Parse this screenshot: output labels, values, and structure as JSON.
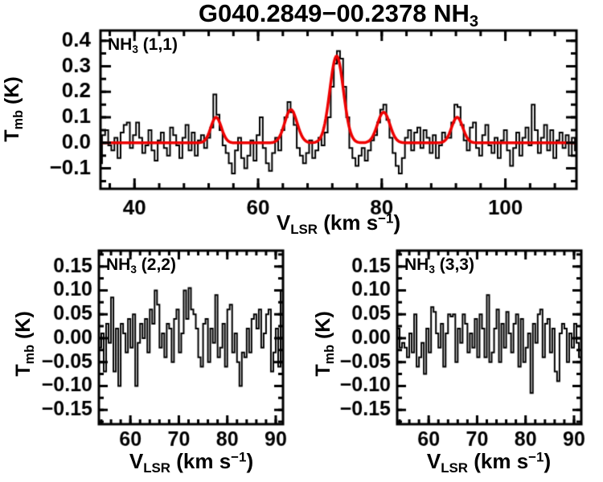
{
  "title": {
    "pre": "G040.2849−00.2378 NH",
    "sub": "3"
  },
  "colors": {
    "bg": "#ffffff",
    "line": "#000000",
    "fit": "#ee0000",
    "text": "#000000"
  },
  "axis_labels": {
    "x": {
      "pre": "V",
      "sub": "LSR",
      "mid": " (km s",
      "sup": "−1",
      "post": ")"
    },
    "y": {
      "pre": "T",
      "sub": "mb",
      "post": " (K)"
    }
  },
  "panel_labels": {
    "p11": {
      "pre": "NH",
      "sub": "3",
      "post": " (1,1)"
    },
    "p22": {
      "pre": "NH",
      "sub": "3",
      "post": " (2,2)"
    },
    "p33": {
      "pre": "NH",
      "sub": "3",
      "post": " (3,3)"
    }
  },
  "chart_data": [
    {
      "type": "line",
      "subtype": "histogram-step",
      "title": "NH3 (1,1)",
      "xlabel": "V_LSR (km s^-1)",
      "ylabel": "T_mb (K)",
      "xlim": [
        34.5,
        111.5
      ],
      "ylim": [
        -0.18,
        0.44
      ],
      "grid": false,
      "xticks": {
        "major": [
          40,
          60,
          80,
          100
        ],
        "labels": [
          "40",
          "60",
          "80",
          "100"
        ],
        "minor_step": 4
      },
      "yticks": {
        "major": [
          0.4,
          0.3,
          0.2,
          0.1,
          0.0,
          -0.1
        ],
        "labels": [
          "0.4",
          "0.3",
          "0.2",
          "0.1",
          "0.0",
          "−0.1"
        ],
        "minor_step": 0.05
      },
      "x_start": 33.0,
      "dx": 0.5,
      "values": [
        -0.02,
        0.01,
        -0.05,
        -0.08,
        0.03,
        0.05,
        -0.01,
        -0.03,
        0.02,
        -0.06,
        0.04,
        0.07,
        0.08,
        -0.02,
        0.03,
        0.08,
        0.02,
        -0.04,
        -0.01,
        0.05,
        -0.03,
        -0.07,
        0.01,
        0.04,
        -0.02,
        -0.05,
        0.06,
        0.03,
        -0.01,
        -0.06,
        0.02,
        0.07,
        -0.03,
        0.04,
        -0.05,
        0.01,
        0.03,
        -0.02,
        0.02,
        0.06,
        0.19,
        0.11,
        0.05,
        -0.01,
        -0.04,
        -0.08,
        -0.12,
        -0.03,
        0.02,
        -0.06,
        -0.1,
        -0.05,
        0.01,
        -0.07,
        0.03,
        0.1,
        -0.02,
        -0.08,
        -0.11,
        -0.04,
        0.02,
        -0.03,
        0.05,
        0.1,
        0.16,
        0.12,
        0.07,
        -0.02,
        -0.05,
        -0.08,
        -0.04,
        0.01,
        -0.06,
        -0.03,
        0.02,
        -0.01,
        0.04,
        0.1,
        0.22,
        0.31,
        0.36,
        0.33,
        0.22,
        0.1,
        -0.02,
        -0.06,
        -0.09,
        -0.05,
        -0.02,
        -0.07,
        -0.03,
        0.01,
        0.03,
        0.08,
        0.13,
        0.15,
        0.09,
        0.02,
        -0.04,
        -0.09,
        -0.12,
        -0.06,
        0.02,
        0.05,
        -0.03,
        0.04,
        0.06,
        -0.02,
        0.05,
        0.02,
        -0.04,
        0.03,
        -0.06,
        -0.01,
        0.04,
        0.02,
        0.02,
        0.08,
        0.15,
        0.14,
        0.07,
        0.01,
        -0.03,
        0.06,
        0.08,
        -0.02,
        -0.05,
        0.03,
        0.07,
        -0.01,
        -0.04,
        0.02,
        -0.06,
        0.01,
        0.05,
        -0.03,
        -0.09,
        -0.02,
        0.04,
        -0.05,
        0.02,
        0.06,
        -0.01,
        0.15,
        0.05,
        -0.04,
        0.02,
        0.07,
        -0.03,
        0.05,
        -0.06,
        0.01,
        0.04,
        -0.02,
        0.03,
        -0.05,
        0.02,
        -0.03,
        0.01
      ],
      "fit": {
        "baseline": 0.0,
        "gaussians": [
          {
            "center": 53.2,
            "amp": 0.1,
            "sigma": 0.85
          },
          {
            "center": 65.3,
            "amp": 0.13,
            "sigma": 1.0
          },
          {
            "center": 72.7,
            "amp": 0.34,
            "sigma": 1.1
          },
          {
            "center": 80.3,
            "amp": 0.12,
            "sigma": 1.0
          },
          {
            "center": 92.2,
            "amp": 0.1,
            "sigma": 0.9
          }
        ]
      }
    },
    {
      "type": "line",
      "subtype": "histogram-step",
      "title": "NH3 (2,2)",
      "xlabel": "V_LSR (km s^-1)",
      "ylabel": "T_mb (K)",
      "xlim": [
        53.5,
        91.5
      ],
      "ylim": [
        -0.18,
        0.183
      ],
      "grid": false,
      "xticks": {
        "major": [
          60,
          70,
          80,
          90
        ],
        "labels": [
          "60",
          "70",
          "80",
          "90"
        ],
        "minor_step": 2
      },
      "yticks": {
        "major": [
          0.15,
          0.1,
          0.05,
          0.0,
          -0.05,
          -0.1,
          -0.15
        ],
        "labels": [
          "0.15",
          "0.10",
          "0.05",
          "0.00",
          "−0.05",
          "−0.10",
          "−0.15"
        ],
        "minor_step": 0.025
      },
      "x_start": 53.25,
      "dx": 0.5,
      "values": [
        -0.13,
        -0.02,
        0.01,
        -0.07,
        0.03,
        -0.01,
        0.085,
        -0.07,
        0.02,
        -0.1,
        0.03,
        0.01,
        -0.03,
        0.04,
        -0.02,
        0.05,
        -0.1,
        -0.01,
        0.03,
        0.0,
        0.04,
        -0.03,
        0.06,
        0.03,
        0.1,
        0.07,
        -0.02,
        0.01,
        -0.04,
        0.03,
        0.02,
        -0.05,
        0.04,
        0.06,
        -0.03,
        0.01,
        0.1,
        0.04,
        0.105,
        0.06,
        0.05,
        0.02,
        -0.04,
        -0.06,
        0.03,
        0.04,
        -0.05,
        0.02,
        -0.01,
        0.09,
        -0.04,
        -0.02,
        0.03,
        -0.06,
        0.06,
        0.07,
        -0.03,
        0.01,
        -0.05,
        -0.1,
        -0.03,
        -0.04,
        0.02,
        -0.03,
        0.04,
        0.05,
        0.02,
        0.06,
        -0.02,
        0.01,
        0.05,
        0.06,
        -0.07,
        -0.03,
        0.02,
        -0.06,
        0.1,
        -0.04,
        -0.02,
        0.03
      ]
    },
    {
      "type": "line",
      "subtype": "histogram-step",
      "title": "NH3 (3,3)",
      "xlabel": "V_LSR (km s^-1)",
      "ylabel": "T_mb (K)",
      "xlim": [
        53.5,
        91.5
      ],
      "ylim": [
        -0.18,
        0.183
      ],
      "grid": false,
      "xticks": {
        "major": [
          60,
          70,
          80,
          90
        ],
        "labels": [
          "60",
          "70",
          "80",
          "90"
        ],
        "minor_step": 2
      },
      "yticks": {
        "major": [
          0.15,
          0.1,
          0.05,
          0.0,
          -0.05,
          -0.1,
          -0.15
        ],
        "labels": [
          "0.15",
          "0.10",
          "0.05",
          "0.00",
          "−0.05",
          "−0.10",
          "−0.15"
        ],
        "minor_step": 0.025
      },
      "x_start": 53.25,
      "dx": 0.5,
      "values": [
        0.095,
        0.02,
        -0.02,
        -0.01,
        -0.02,
        -0.04,
        0.01,
        -0.03,
        0.05,
        -0.06,
        -0.04,
        -0.01,
        -0.075,
        0.02,
        -0.03,
        0.065,
        0.055,
        0.01,
        -0.02,
        0.03,
        -0.06,
        0.01,
        0.05,
        0.045,
        0.05,
        -0.05,
        0.02,
        -0.01,
        0.05,
        0.03,
        -0.03,
        0.01,
        -0.02,
        0.04,
        -0.04,
        0.05,
        0.02,
        -0.04,
        0.09,
        -0.05,
        -0.03,
        0.02,
        0.06,
        -0.05,
        0.03,
        -0.02,
        0.055,
        0.01,
        -0.03,
        0.03,
        0.05,
        -0.06,
        0.04,
        -0.05,
        -0.02,
        0.01,
        -0.115,
        0.03,
        -0.01,
        0.05,
        0.06,
        -0.04,
        0.03,
        0.04,
        -0.03,
        0.02,
        -0.07,
        -0.09,
        0.01,
        0.03,
        0.02,
        -0.05,
        0.01,
        -0.02,
        0.03,
        -0.01,
        -0.04,
        -0.03,
        -0.02,
        -0.045
      ]
    }
  ]
}
